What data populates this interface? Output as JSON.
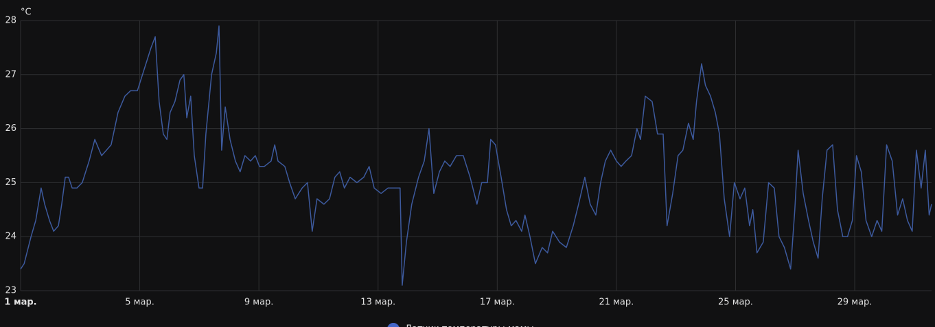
{
  "chart_data": {
    "type": "line",
    "ylabel": "°C",
    "x": [
      1.0,
      1.12,
      1.35,
      1.51,
      1.69,
      1.81,
      1.97,
      2.11,
      2.27,
      2.38,
      2.5,
      2.61,
      2.73,
      2.89,
      3.07,
      3.3,
      3.49,
      3.72,
      3.88,
      4.04,
      4.27,
      4.5,
      4.69,
      4.92,
      5.15,
      5.38,
      5.52,
      5.65,
      5.79,
      5.91,
      6.02,
      6.18,
      6.35,
      6.48,
      6.58,
      6.71,
      6.83,
      6.99,
      7.11,
      7.22,
      7.41,
      7.57,
      7.66,
      7.75,
      7.87,
      8.03,
      8.21,
      8.37,
      8.53,
      8.72,
      8.88,
      9.02,
      9.18,
      9.41,
      9.53,
      9.64,
      9.87,
      10.03,
      10.22,
      10.45,
      10.63,
      10.79,
      10.95,
      11.18,
      11.37,
      11.55,
      11.71,
      11.87,
      12.06,
      12.29,
      12.52,
      12.7,
      12.87,
      13.1,
      13.33,
      13.56,
      13.74,
      13.81,
      13.95,
      14.13,
      14.36,
      14.55,
      14.71,
      14.87,
      15.06,
      15.24,
      15.42,
      15.63,
      15.86,
      16.09,
      16.32,
      16.48,
      16.67,
      16.78,
      16.94,
      17.13,
      17.31,
      17.47,
      17.63,
      17.82,
      17.93,
      18.1,
      18.28,
      18.51,
      18.69,
      18.86,
      19.09,
      19.32,
      19.55,
      19.73,
      19.94,
      20.12,
      20.31,
      20.47,
      20.63,
      20.81,
      21.0,
      21.16,
      21.32,
      21.51,
      21.69,
      21.81,
      21.97,
      22.2,
      22.38,
      22.57,
      22.7,
      22.89,
      23.07,
      23.23,
      23.42,
      23.58,
      23.69,
      23.86,
      23.99,
      24.16,
      24.32,
      24.46,
      24.62,
      24.8,
      24.96,
      25.15,
      25.31,
      25.47,
      25.58,
      25.72,
      25.93,
      26.11,
      26.3,
      26.46,
      26.64,
      26.85,
      26.99,
      27.1,
      27.27,
      27.45,
      27.61,
      27.77,
      27.91,
      28.07,
      28.26,
      28.42,
      28.6,
      28.76,
      28.92,
      29.06,
      29.22,
      29.38,
      29.57,
      29.75,
      29.91,
      30.07,
      30.26,
      30.44,
      30.61,
      30.77,
      30.93,
      31.07,
      31.23,
      31.37,
      31.5,
      31.58
    ],
    "series": [
      {
        "name": "Датчик температуры мамы",
        "color": "#3d5a9e",
        "values": [
          23.4,
          23.5,
          24.0,
          24.3,
          24.9,
          24.6,
          24.3,
          24.1,
          24.2,
          24.6,
          25.1,
          25.1,
          24.9,
          24.9,
          25.0,
          25.4,
          25.8,
          25.5,
          25.6,
          25.7,
          26.3,
          26.6,
          26.7,
          26.7,
          27.1,
          27.5,
          27.7,
          26.5,
          25.9,
          25.8,
          26.3,
          26.5,
          26.9,
          27.0,
          26.2,
          26.6,
          25.5,
          24.9,
          24.9,
          25.9,
          27.0,
          27.4,
          27.9,
          25.6,
          26.4,
          25.8,
          25.4,
          25.2,
          25.5,
          25.4,
          25.5,
          25.3,
          25.3,
          25.4,
          25.7,
          25.4,
          25.3,
          25.0,
          24.7,
          24.9,
          25.0,
          24.1,
          24.7,
          24.6,
          24.7,
          25.1,
          25.2,
          24.9,
          25.1,
          25.0,
          25.1,
          25.3,
          24.9,
          24.8,
          24.9,
          24.9,
          24.9,
          23.1,
          23.9,
          24.6,
          25.1,
          25.4,
          26.0,
          24.8,
          25.2,
          25.4,
          25.3,
          25.5,
          25.5,
          25.1,
          24.6,
          25.0,
          25.0,
          25.8,
          25.7,
          25.1,
          24.5,
          24.2,
          24.3,
          24.1,
          24.4,
          24.0,
          23.5,
          23.8,
          23.7,
          24.1,
          23.9,
          23.8,
          24.2,
          24.6,
          25.1,
          24.6,
          24.4,
          25.0,
          25.4,
          25.6,
          25.4,
          25.3,
          25.4,
          25.5,
          26.0,
          25.8,
          26.6,
          26.5,
          25.9,
          25.9,
          24.2,
          24.8,
          25.5,
          25.6,
          26.1,
          25.8,
          26.5,
          27.2,
          26.8,
          26.6,
          26.3,
          25.9,
          24.7,
          24.0,
          25.0,
          24.7,
          24.9,
          24.2,
          24.5,
          23.7,
          23.9,
          25.0,
          24.9,
          24.0,
          23.8,
          23.4,
          24.5,
          25.6,
          24.8,
          24.3,
          23.9,
          23.6,
          24.7,
          25.6,
          25.7,
          24.5,
          24.0,
          24.0,
          24.3,
          25.5,
          25.2,
          24.3,
          24.0,
          24.3,
          24.1,
          25.7,
          25.4,
          24.4,
          24.7,
          24.3,
          24.1,
          25.6,
          24.9,
          25.6,
          24.4,
          24.6
        ]
      }
    ],
    "xlim": [
      1,
      31.58
    ],
    "xticks": [
      {
        "value": 1,
        "label": "1 мар."
      },
      {
        "value": 5,
        "label": "5 мар."
      },
      {
        "value": 9,
        "label": "9 мар."
      },
      {
        "value": 13,
        "label": "13 мар."
      },
      {
        "value": 17,
        "label": "17 мар."
      },
      {
        "value": 21,
        "label": "21 мар."
      },
      {
        "value": 25,
        "label": "25 мар."
      },
      {
        "value": 29,
        "label": "29 мар."
      }
    ],
    "ylim": [
      23,
      28
    ],
    "yticks": [
      23,
      24,
      25,
      26,
      27,
      28
    ],
    "grid": true
  }
}
